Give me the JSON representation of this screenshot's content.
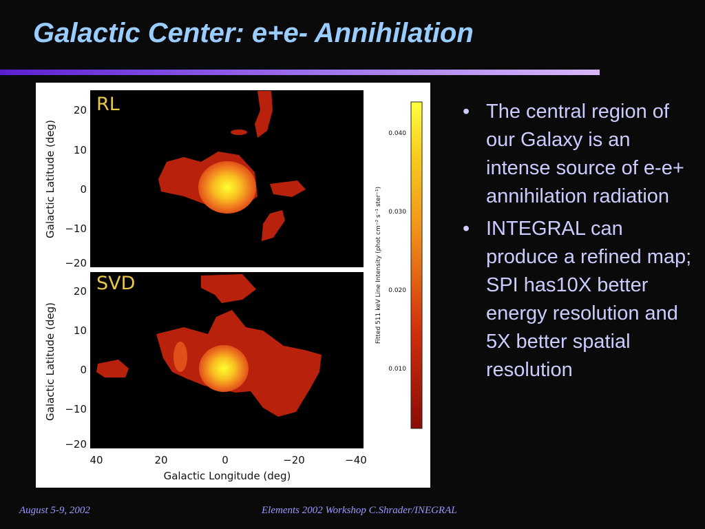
{
  "header": {
    "title": "Galactic Center: e+e- Annihilation"
  },
  "figure": {
    "panels": [
      {
        "label": "RL",
        "yticks": [
          "20",
          "10",
          "0",
          "−10",
          "−20"
        ],
        "ylabel": "Galactic Latitude (deg)"
      },
      {
        "label": "SVD",
        "yticks": [
          "20",
          "10",
          "0",
          "−10",
          "−20"
        ],
        "ylabel": "Galactic Latitude (deg)"
      }
    ],
    "xticks": [
      "40",
      "20",
      "0",
      "−20",
      "−40"
    ],
    "xlabel": "Galactic Longitude (deg)",
    "colorbar": {
      "label": "Fitted 511 keV Line Intensity (phot cm⁻² s⁻¹ ster⁻¹)",
      "ticks": [
        "0.040",
        "0.030",
        "0.020",
        "0.010"
      ]
    }
  },
  "bullets": [
    "The central region of our Galaxy is an intense source of e-e+ annihilation radiation",
    "INTEGRAL can produce a refined map; SPI has10X better energy resolution and 5X better spatial resolution"
  ],
  "footer": {
    "left": "August 5-9, 2002",
    "center": "Elements 2002 Workshop  C.Shrader/INEGRAL"
  }
}
